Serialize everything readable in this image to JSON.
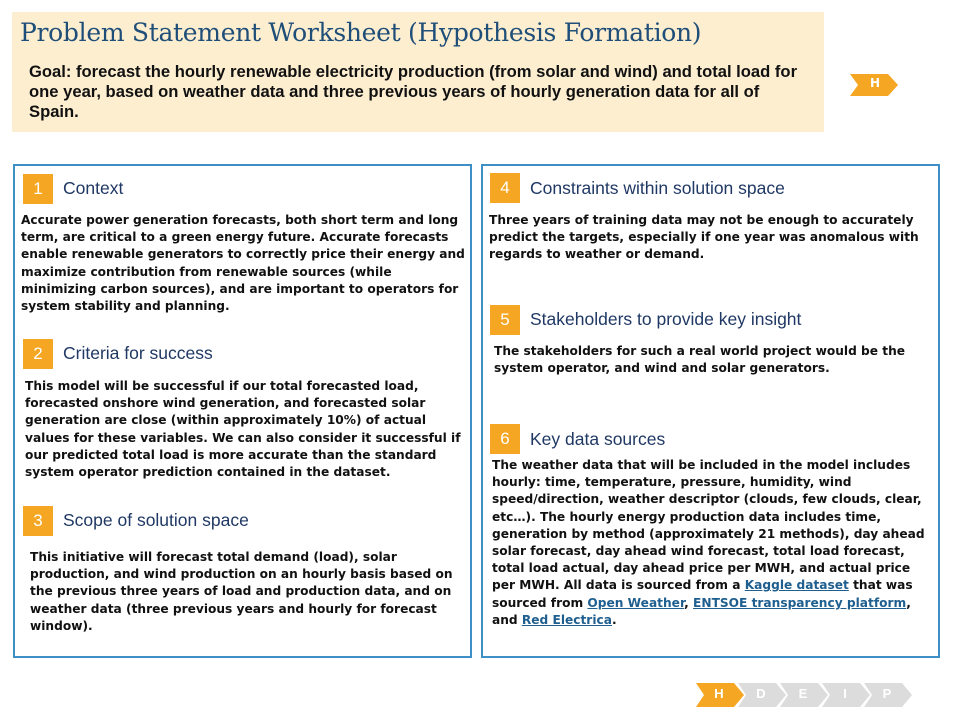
{
  "header": {
    "title": "Problem Statement Worksheet (Hypothesis Formation)",
    "goal": "Goal:  forecast the hourly renewable electricity production (from solar and wind) and total load for one year, based on weather data and three previous years of hourly generation data for all of Spain.",
    "stage_tag": "H"
  },
  "sections": {
    "context": {
      "number": "1",
      "title": "Context",
      "body": "Accurate power generation forecasts, both short term and long term, are critical to a green energy future. Accurate forecasts enable renewable generators to correctly price their energy and maximize contribution from renewable sources (while minimizing carbon sources), and are important to operators for system stability and planning."
    },
    "criteria": {
      "number": "2",
      "title": "Criteria for success",
      "body": "This model will be successful if our total forecasted load, forecasted onshore wind generation, and forecasted solar generation are close (within approximately 10%)  of actual values for these variables. We can also consider it successful if our predicted total load is more accurate than the standard system operator prediction contained in the dataset."
    },
    "scope": {
      "number": "3",
      "title": "Scope of solution space",
      "body": "This initiative will forecast total demand (load), solar production, and wind production on an hourly basis based on the previous three years of load and production data, and on weather data (three previous years and hourly for forecast window)."
    },
    "constraints": {
      "number": "4",
      "title": "Constraints within solution space",
      "body": "Three years of training data may  not be enough to accurately predict the targets, especially if one year was anomalous with regards to weather or demand."
    },
    "stakeholders": {
      "number": "5",
      "title": "Stakeholders to provide key insight",
      "body": "The stakeholders for such a real world project would be the system operator, and wind and solar generators."
    },
    "data_sources": {
      "number": "6",
      "title": "Key data sources",
      "body_intro": "The weather data that will be included in the model includes hourly: time, temperature, pressure, humidity, wind speed/direction, weather descriptor (clouds, few clouds, clear, etc…). The hourly energy production data includes time, generation by method (approximately 21 methods), day ahead solar forecast, day ahead wind forecast, total load forecast, total load actual, day ahead price per MWH, and actual price per MWH. All  data is sourced from a ",
      "link_kaggle": "Kaggle dataset",
      "text_2": " that was sourced from ",
      "link_open_weather": "Open Weather",
      "text_3": ", ",
      "link_entsoe": "ENTSOE transparency platform",
      "text_4": ", and ",
      "link_red_electrica": "Red Electrica",
      "text_5": "."
    }
  },
  "stepper": {
    "steps": [
      "H",
      "D",
      "E",
      "I",
      "P"
    ],
    "active_color": "#f5a623",
    "inactive_color": "#dcdcdc"
  }
}
